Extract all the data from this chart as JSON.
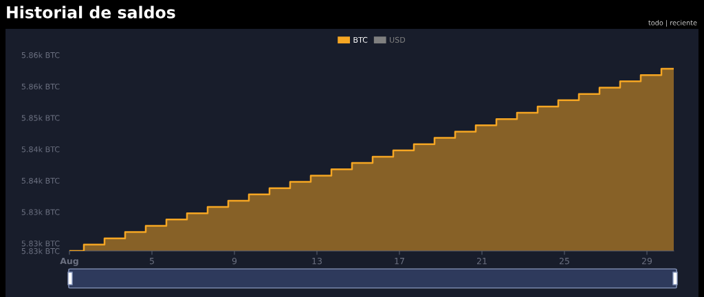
{
  "chart_data": {
    "type": "step",
    "title": "Historial de saldos",
    "annotations": [
      "todo | reciente"
    ],
    "x": [
      1,
      1.7,
      2.7,
      3.7,
      4.7,
      5.7,
      6.7,
      7.7,
      8.7,
      9.7,
      10.7,
      11.7,
      12.7,
      13.7,
      14.7,
      15.7,
      16.7,
      17.7,
      18.7,
      19.7,
      20.7,
      21.7,
      22.7,
      23.7,
      24.7,
      25.7,
      26.7,
      27.7,
      28.7,
      29.7,
      30.3
    ],
    "series": [
      {
        "name": "BTC",
        "color": "#f5a623",
        "values": [
          5828.8,
          5829.8,
          5830.8,
          5831.8,
          5832.8,
          5833.8,
          5834.8,
          5835.8,
          5836.8,
          5837.8,
          5838.8,
          5839.8,
          5840.8,
          5841.8,
          5842.8,
          5843.8,
          5844.8,
          5845.8,
          5846.8,
          5847.8,
          5848.8,
          5849.8,
          5850.8,
          5851.8,
          5852.8,
          5853.8,
          5854.8,
          5855.8,
          5856.8,
          5857.8,
          5857.8
        ]
      },
      {
        "name": "USD",
        "color": "#808080",
        "values": [
          null,
          null,
          null,
          null,
          null,
          null,
          null,
          null,
          null,
          null,
          null,
          null,
          null,
          null,
          null,
          null,
          null,
          null,
          null,
          null,
          null,
          null,
          null,
          null,
          null,
          null,
          null,
          null,
          null,
          null,
          null
        ]
      }
    ],
    "xlim": [
      1,
      30.3
    ],
    "xticks": [
      {
        "value": 1,
        "label": "Aug"
      },
      5,
      9,
      13,
      17,
      21,
      25,
      29
    ],
    "ylim": [
      5828.8,
      5860
    ],
    "yticks": [
      {
        "value": 5828.8,
        "label": "5.83k BTC"
      },
      {
        "value": 5830,
        "label": "5.83k BTC"
      },
      {
        "value": 5835,
        "label": "5.83k BTC"
      },
      {
        "value": 5840,
        "label": "5.84k BTC"
      },
      {
        "value": 5845,
        "label": "5.84k BTC"
      },
      {
        "value": 5850,
        "label": "5.85k BTC"
      },
      {
        "value": 5855,
        "label": "5.86k BTC"
      },
      {
        "value": 5860,
        "label": "5.86k BTC"
      }
    ],
    "grid": false,
    "legend": "top",
    "marker": "none"
  }
}
